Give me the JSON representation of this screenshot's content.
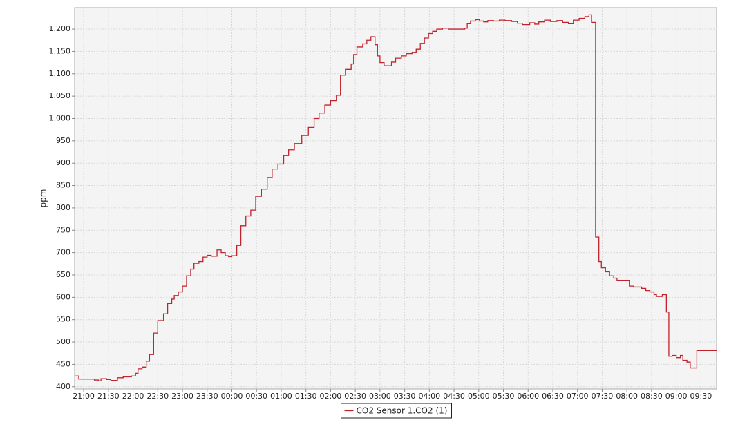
{
  "chart_data": {
    "type": "line",
    "step": true,
    "y_label": "ppm",
    "grid": true,
    "legend": "bottom",
    "x": [
      "20:49",
      "20:54",
      "21:13",
      "21:18",
      "21:21",
      "21:28",
      "21:33",
      "21:41",
      "21:48",
      "21:58",
      "22:03",
      "22:06",
      "22:11",
      "22:16",
      "22:20",
      "22:25",
      "22:30",
      "22:37",
      "22:42",
      "22:47",
      "22:50",
      "22:55",
      "23:00",
      "23:05",
      "23:10",
      "23:14",
      "23:20",
      "23:25",
      "23:30",
      "23:35",
      "23:42",
      "23:47",
      "23:52",
      "23:56",
      "00:00",
      "00:06",
      "00:11",
      "00:17",
      "00:23",
      "00:29",
      "00:36",
      "00:43",
      "00:49",
      "00:56",
      "01:03",
      "01:09",
      "01:16",
      "01:25",
      "01:33",
      "01:40",
      "01:46",
      "01:53",
      "02:00",
      "02:07",
      "02:12",
      "02:18",
      "02:25",
      "02:28",
      "02:32",
      "02:39",
      "02:44",
      "02:49",
      "02:54",
      "02:57",
      "03:00",
      "03:05",
      "03:14",
      "03:19",
      "03:26",
      "03:32",
      "03:39",
      "03:44",
      "03:49",
      "03:54",
      "03:59",
      "04:04",
      "04:09",
      "04:16",
      "04:23",
      "04:43",
      "04:46",
      "04:50",
      "04:56",
      "05:01",
      "05:06",
      "05:11",
      "05:18",
      "05:25",
      "05:32",
      "05:40",
      "05:47",
      "05:53",
      "06:02",
      "06:08",
      "06:13",
      "06:20",
      "06:27",
      "06:35",
      "06:42",
      "06:49",
      "06:55",
      "07:02",
      "07:09",
      "07:14",
      "07:17",
      "07:22",
      "07:26",
      "07:29",
      "07:34",
      "07:39",
      "07:44",
      "07:48",
      "08:03",
      "08:08",
      "08:18",
      "08:23",
      "08:28",
      "08:33",
      "08:36",
      "08:43",
      "08:48",
      "08:51",
      "08:55",
      "09:00",
      "09:05",
      "09:08",
      "09:13",
      "09:17",
      "09:25"
    ],
    "series": [
      {
        "name": "CO2 Sensor 1.CO2 (1)",
        "color": "#c0232c",
        "values": [
          424,
          417,
          415,
          413,
          418,
          416,
          414,
          420,
          422,
          424,
          430,
          440,
          444,
          457,
          472,
          520,
          548,
          563,
          586,
          596,
          604,
          612,
          625,
          648,
          663,
          676,
          680,
          690,
          694,
          692,
          706,
          700,
          693,
          691,
          693,
          716,
          760,
          782,
          795,
          826,
          842,
          868,
          887,
          898,
          917,
          930,
          944,
          962,
          980,
          1000,
          1012,
          1030,
          1040,
          1052,
          1097,
          1110,
          1122,
          1143,
          1160,
          1167,
          1175,
          1183,
          1165,
          1140,
          1125,
          1118,
          1126,
          1135,
          1140,
          1145,
          1148,
          1155,
          1168,
          1180,
          1190,
          1195,
          1200,
          1202,
          1200,
          1202,
          1212,
          1218,
          1221,
          1218,
          1216,
          1219,
          1218,
          1220,
          1219,
          1217,
          1213,
          1210,
          1214,
          1211,
          1216,
          1220,
          1217,
          1219,
          1215,
          1212,
          1220,
          1224,
          1228,
          1232,
          1215,
          735,
          680,
          666,
          657,
          648,
          643,
          637,
          625,
          623,
          620,
          615,
          612,
          606,
          602,
          606,
          567,
          468,
          470,
          465,
          470,
          459,
          455,
          442,
          481
        ]
      }
    ],
    "xlim": [
      "20:49",
      "09:49"
    ],
    "xticks": [
      "21:00",
      "21:30",
      "22:00",
      "22:30",
      "23:00",
      "23:30",
      "00:00",
      "00:30",
      "01:00",
      "01:30",
      "02:00",
      "02:30",
      "03:00",
      "03:30",
      "04:00",
      "04:30",
      "05:00",
      "05:30",
      "06:00",
      "06:30",
      "07:00",
      "07:30",
      "08:00",
      "08:30",
      "09:00",
      "09:30"
    ],
    "ylim": [
      395,
      1248
    ],
    "yticks": [
      400,
      450,
      500,
      550,
      600,
      650,
      700,
      750,
      800,
      850,
      900,
      950,
      {
        "value": 1000,
        "label": "1.000"
      },
      {
        "value": 1050,
        "label": "1.050"
      },
      {
        "value": 1100,
        "label": "1.100"
      },
      {
        "value": 1150,
        "label": "1.150"
      },
      {
        "value": 1200,
        "label": "1.200"
      }
    ]
  }
}
